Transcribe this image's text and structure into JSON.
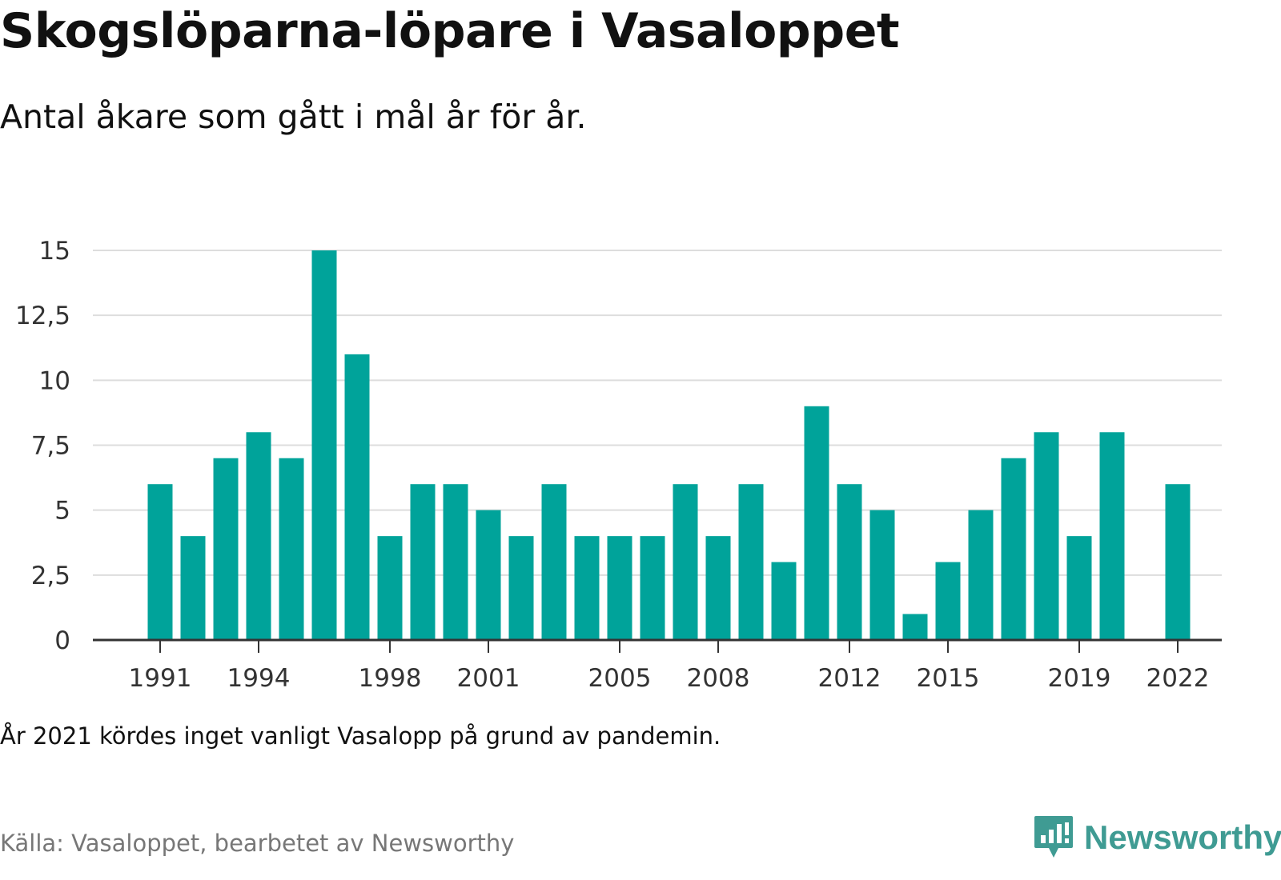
{
  "header": {
    "title": "Skogslöparna-löpare i Vasaloppet",
    "subtitle": "Antal åkare som gått i mål år för år."
  },
  "footer": {
    "note": "År 2021 kördes inget vanligt Vasalopp på grund av pandemin.",
    "source": "Källa: Vasaloppet, bearbetet av Newsworthy",
    "brand": "Newsworthy"
  },
  "colors": {
    "bar": "#00a39a",
    "grid": "#dddddd",
    "axis": "#333333",
    "brand": "#3f9b93"
  },
  "icons": {
    "logo": "newsworthy-bar-chart-icon"
  },
  "chart_data": {
    "type": "bar",
    "title": "Skogslöparna-löpare i Vasaloppet",
    "subtitle": "Antal åkare som gått i mål år för år.",
    "xlabel": "",
    "ylabel": "",
    "x": [
      1991,
      1992,
      1993,
      1994,
      1995,
      1996,
      1997,
      1998,
      1999,
      2000,
      2001,
      2002,
      2003,
      2004,
      2005,
      2006,
      2007,
      2008,
      2009,
      2010,
      2011,
      2012,
      2013,
      2014,
      2015,
      2016,
      2017,
      2018,
      2019,
      2020,
      2021,
      2022
    ],
    "values": [
      6,
      4,
      7,
      8,
      7,
      15,
      11,
      4,
      6,
      6,
      5,
      4,
      6,
      4,
      4,
      4,
      6,
      4,
      6,
      3,
      9,
      6,
      5,
      1,
      3,
      5,
      7,
      8,
      4,
      8,
      null,
      6
    ],
    "ylim": [
      0,
      15
    ],
    "yticks": [
      "0",
      "2,5",
      "5",
      "7,5",
      "10",
      "12,5",
      "15"
    ],
    "ytick_values": [
      0,
      2.5,
      5,
      7.5,
      10,
      12.5,
      15
    ],
    "xticks": [
      1991,
      1994,
      1998,
      2001,
      2005,
      2008,
      2012,
      2015,
      2019,
      2022
    ],
    "grid": true,
    "legend": "none"
  }
}
